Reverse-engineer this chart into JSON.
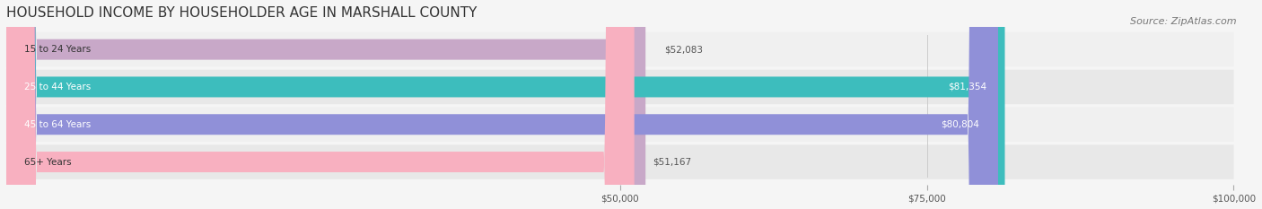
{
  "title": "HOUSEHOLD INCOME BY HOUSEHOLDER AGE IN MARSHALL COUNTY",
  "source": "Source: ZipAtlas.com",
  "categories": [
    "15 to 24 Years",
    "25 to 44 Years",
    "45 to 64 Years",
    "65+ Years"
  ],
  "values": [
    52083,
    81354,
    80804,
    51167
  ],
  "bar_colors": [
    "#c8a8c8",
    "#3dbdbd",
    "#9090d8",
    "#f8b0c0"
  ],
  "label_colors": [
    "#555555",
    "#ffffff",
    "#ffffff",
    "#555555"
  ],
  "value_labels": [
    "$52,083",
    "$81,354",
    "$80,804",
    "$51,167"
  ],
  "bg_colors": [
    "#f0f0f0",
    "#e8e8e8",
    "#f0f0f0",
    "#e8e8e8"
  ],
  "xlim": [
    0,
    100000
  ],
  "xticks": [
    50000,
    75000,
    100000
  ],
  "xtick_labels": [
    "$50,000",
    "$75,000",
    "$100,000"
  ],
  "title_fontsize": 11,
  "source_fontsize": 8,
  "bar_height": 0.55,
  "figsize": [
    14.06,
    2.33
  ],
  "dpi": 100
}
